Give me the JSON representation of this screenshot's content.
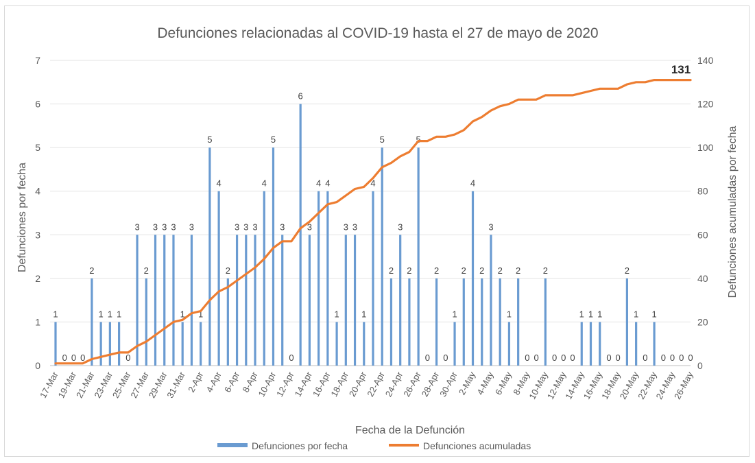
{
  "chart_data": {
    "type": "bar",
    "title": "Defunciones relacionadas al COVID-19 hasta el 27 de mayo de 2020",
    "xlabel": "Fecha de la Defunción",
    "ylabel": "Defunciones por fecha",
    "y2label": "Defunciones acumuladas por fecha",
    "ylim": [
      0,
      7
    ],
    "y2lim": [
      0,
      140
    ],
    "yticks": [
      "0",
      "1",
      "2",
      "3",
      "4",
      "5",
      "6",
      "7"
    ],
    "y2ticks": [
      "0",
      "20",
      "40",
      "60",
      "80",
      "100",
      "120",
      "140"
    ],
    "grid": true,
    "legend_position": "bottom",
    "categories": [
      "17-Mar",
      "18-Mar",
      "19-Mar",
      "20-Mar",
      "21-Mar",
      "22-Mar",
      "23-Mar",
      "24-Mar",
      "25-Mar",
      "26-Mar",
      "27-Mar",
      "28-Mar",
      "29-Mar",
      "30-Mar",
      "31-Mar",
      "1-Apr",
      "2-Apr",
      "3-Apr",
      "4-Apr",
      "5-Apr",
      "6-Apr",
      "7-Apr",
      "8-Apr",
      "9-Apr",
      "10-Apr",
      "11-Apr",
      "12-Apr",
      "13-Apr",
      "14-Apr",
      "15-Apr",
      "16-Apr",
      "17-Apr",
      "18-Apr",
      "19-Apr",
      "20-Apr",
      "21-Apr",
      "22-Apr",
      "23-Apr",
      "24-Apr",
      "25-Apr",
      "26-Apr",
      "27-Apr",
      "28-Apr",
      "29-Apr",
      "30-Apr",
      "1-May",
      "2-May",
      "3-May",
      "4-May",
      "5-May",
      "6-May",
      "7-May",
      "8-May",
      "9-May",
      "10-May",
      "11-May",
      "12-May",
      "13-May",
      "14-May",
      "15-May",
      "16-May",
      "17-May",
      "18-May",
      "19-May",
      "20-May",
      "21-May",
      "22-May",
      "23-May",
      "24-May",
      "25-May",
      "26-May"
    ],
    "tick_labels": [
      "17-Mar",
      "19-Mar",
      "21-Mar",
      "23-Mar",
      "25-Mar",
      "27-Mar",
      "29-Mar",
      "31-Mar",
      "2-Apr",
      "4-Apr",
      "6-Apr",
      "8-Apr",
      "10-Apr",
      "12-Apr",
      "14-Apr",
      "16-Apr",
      "18-Apr",
      "20-Apr",
      "22-Apr",
      "24-Apr",
      "26-Apr",
      "28-Apr",
      "30-Apr",
      "2-May",
      "4-May",
      "6-May",
      "8-May",
      "10-May",
      "12-May",
      "14-May",
      "16-May",
      "18-May",
      "20-May",
      "22-May",
      "24-May",
      "26-May"
    ],
    "series": [
      {
        "name": "Defunciones por fecha",
        "type": "bar",
        "axis": "left",
        "color": "#6a9bd1",
        "values": [
          1,
          0,
          0,
          0,
          2,
          1,
          1,
          1,
          0,
          3,
          2,
          3,
          3,
          3,
          1,
          3,
          1,
          5,
          4,
          2,
          3,
          3,
          3,
          4,
          5,
          3,
          0,
          6,
          3,
          4,
          4,
          1,
          3,
          3,
          1,
          4,
          5,
          2,
          3,
          2,
          5,
          0,
          2,
          0,
          1,
          2,
          4,
          2,
          3,
          2,
          1,
          2,
          0,
          0,
          2,
          0,
          0,
          0,
          1,
          1,
          1,
          0,
          0,
          2,
          1,
          0,
          1,
          0,
          0,
          0,
          0
        ]
      },
      {
        "name": "Defunciones acumuladas",
        "type": "line",
        "axis": "right",
        "color": "#ed7d31",
        "values": [
          1,
          1,
          1,
          1,
          3,
          4,
          5,
          6,
          6,
          9,
          11,
          14,
          17,
          20,
          21,
          24,
          25,
          30,
          34,
          36,
          39,
          42,
          45,
          49,
          54,
          57,
          57,
          63,
          66,
          70,
          74,
          75,
          78,
          81,
          82,
          86,
          91,
          93,
          96,
          98,
          103,
          103,
          105,
          105,
          106,
          108,
          112,
          114,
          117,
          119,
          120,
          122,
          122,
          122,
          124,
          124,
          124,
          124,
          125,
          126,
          127,
          127,
          127,
          129,
          130,
          130,
          131,
          131,
          131,
          131,
          131
        ]
      }
    ],
    "final_label": "131"
  }
}
